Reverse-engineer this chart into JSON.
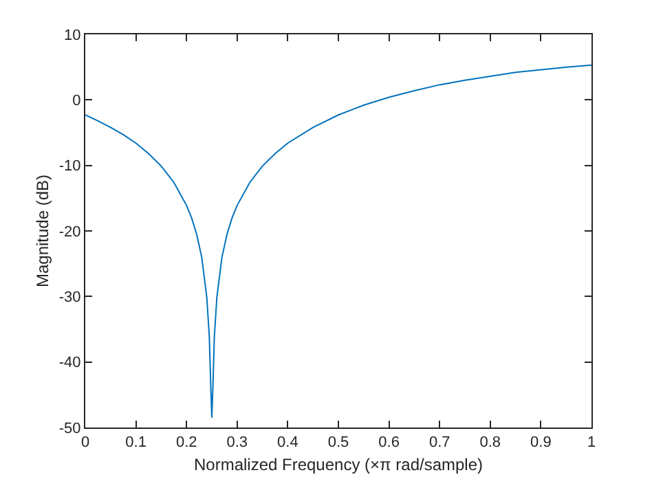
{
  "chart_data": {
    "type": "line",
    "xlabel": "Normalized Frequency (×π rad/sample)",
    "ylabel": "Magnitude (dB)",
    "series": [
      {
        "color": "#0072bd",
        "x": [
          0,
          0.025,
          0.05,
          0.075,
          0.1,
          0.125,
          0.15,
          0.175,
          0.2,
          0.21,
          0.22,
          0.23,
          0.24,
          0.245,
          0.248,
          0.25,
          0.252,
          0.255,
          0.26,
          0.27,
          0.28,
          0.29,
          0.3,
          0.325,
          0.35,
          0.375,
          0.4,
          0.45,
          0.5,
          0.55,
          0.6,
          0.65,
          0.7,
          0.75,
          0.8,
          0.85,
          0.9,
          0.95,
          1.0
        ],
        "values": [
          -2.3,
          -3.2,
          -4.2,
          -5.3,
          -6.6,
          -8.2,
          -10.1,
          -12.6,
          -16.1,
          -18.0,
          -20.5,
          -24.0,
          -30.1,
          -36.1,
          -44.0,
          -48.5,
          -44.0,
          -36.1,
          -30.1,
          -24.0,
          -20.5,
          -18.0,
          -16.1,
          -12.6,
          -10.1,
          -8.2,
          -6.6,
          -4.2,
          -2.3,
          -0.8,
          0.4,
          1.4,
          2.3,
          3.0,
          3.6,
          4.2,
          4.6,
          5.0,
          5.3
        ]
      }
    ],
    "xlim": [
      0,
      1
    ],
    "xticks": [
      0,
      0.1,
      0.2,
      0.3,
      0.4,
      0.5,
      0.6,
      0.7,
      0.8,
      0.9,
      1
    ],
    "ylim": [
      -50,
      10
    ],
    "yticks": [
      -50,
      -40,
      -30,
      -20,
      -10,
      0,
      10
    ],
    "marker": "none",
    "line_style": "solid"
  }
}
